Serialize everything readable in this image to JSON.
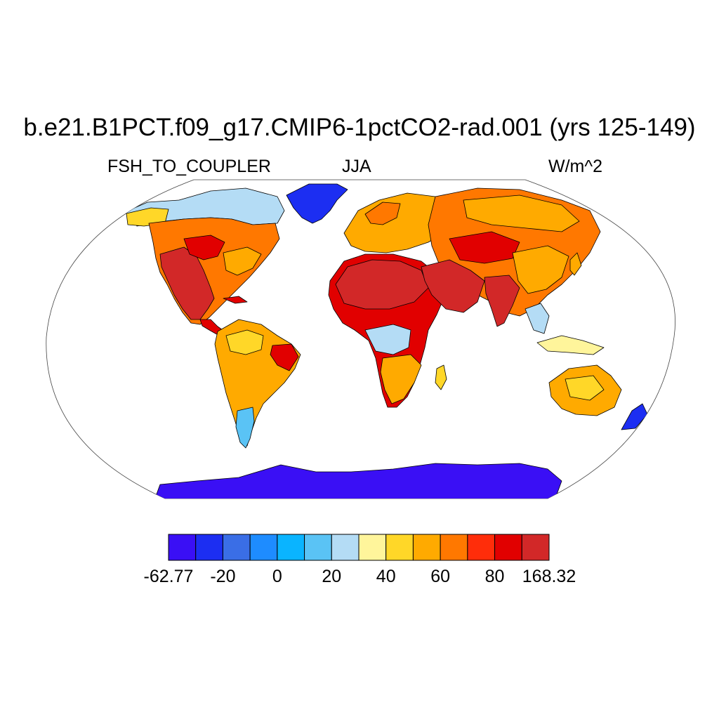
{
  "title": "b.e21.B1PCT.f09_g17.CMIP6-1pctCO2-rad.001 (yrs 125-149)",
  "subtitle_left": "FSH_TO_COUPLER",
  "subtitle_center": "JJA",
  "subtitle_right": "W/m^2",
  "map": {
    "projection": "robinson",
    "ocean_color": "#ffffff",
    "coastline_color": "#000000",
    "regions": [
      {
        "name": "Greenland",
        "level": 1
      },
      {
        "name": "Canada / Alaska",
        "level": 8
      },
      {
        "name": "Central United States",
        "level": 11
      },
      {
        "name": "Western United States",
        "level": 13
      },
      {
        "name": "Mexico",
        "level": 13
      },
      {
        "name": "Amazon",
        "level": 8
      },
      {
        "name": "Northeast Brazil",
        "level": 12
      },
      {
        "name": "Patagonia",
        "level": 5
      },
      {
        "name": "Sahara",
        "level": 13
      },
      {
        "name": "Sahel",
        "level": 11
      },
      {
        "name": "Central Africa",
        "level": 7
      },
      {
        "name": "Southern Africa",
        "level": 10
      },
      {
        "name": "Europe",
        "level": 9
      },
      {
        "name": "Middle East",
        "level": 13
      },
      {
        "name": "Central Asia",
        "level": 11
      },
      {
        "name": "Siberia",
        "level": 9
      },
      {
        "name": "India",
        "level": 13
      },
      {
        "name": "China",
        "level": 10
      },
      {
        "name": "Southeast Asia",
        "level": 7
      },
      {
        "name": "Australia",
        "level": 9
      },
      {
        "name": "New Zealand",
        "level": 1
      },
      {
        "name": "Antarctica",
        "level": 0
      }
    ]
  },
  "colorbar": {
    "colors": [
      "#3a0ff5",
      "#1c2ef2",
      "#3a6ee6",
      "#1e8cff",
      "#0ab4ff",
      "#5ac3f5",
      "#b4dcf5",
      "#fff59b",
      "#ffd728",
      "#ffaa00",
      "#ff7800",
      "#ff2d0a",
      "#e10000",
      "#d22828"
    ],
    "labels": [
      {
        "text": "-62.77",
        "boundary": 0
      },
      {
        "text": "-20",
        "boundary": 2
      },
      {
        "text": "0",
        "boundary": 4
      },
      {
        "text": "20",
        "boundary": 6
      },
      {
        "text": "40",
        "boundary": 8
      },
      {
        "text": "60",
        "boundary": 10
      },
      {
        "text": "80",
        "boundary": 12
      },
      {
        "text": "168.32",
        "boundary": 14
      }
    ]
  }
}
